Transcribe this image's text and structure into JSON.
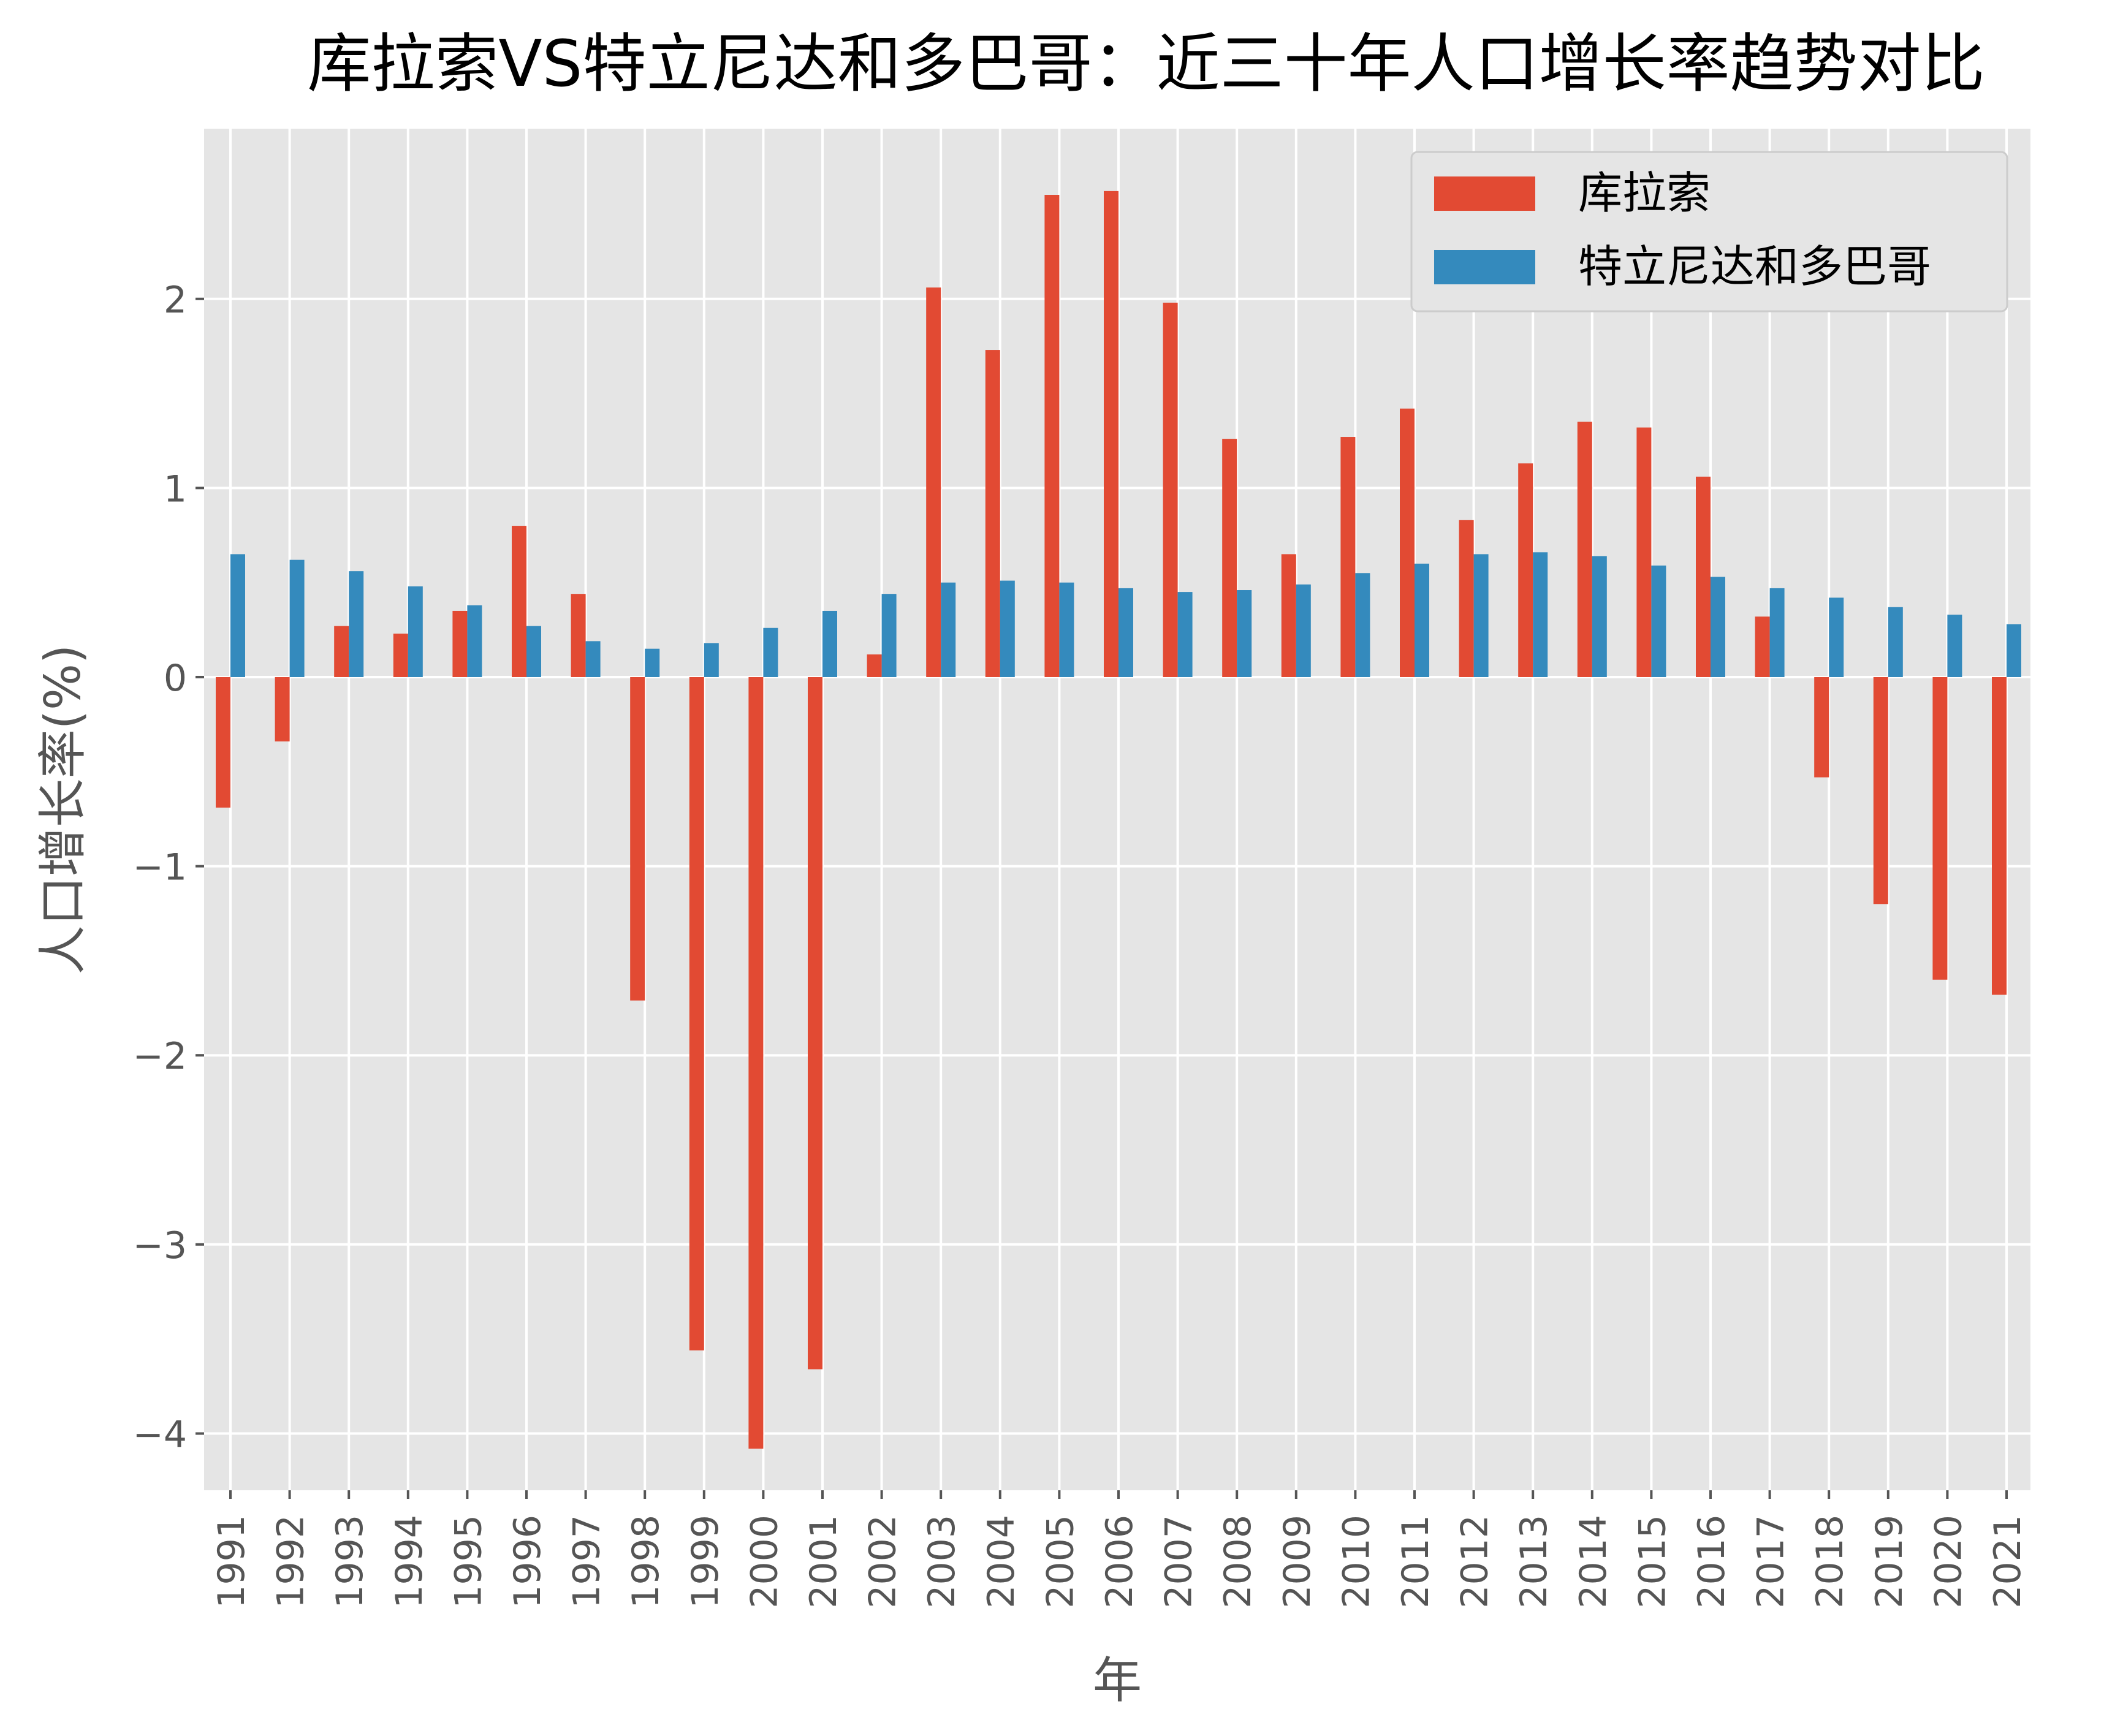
{
  "chart_data": {
    "type": "bar",
    "title": "库拉索VS特立尼达和多巴哥：近三十年人口增长率趋势对比",
    "xlabel": "年",
    "ylabel": "人口增长率(%)",
    "ylim": [
      -4.3,
      2.9
    ],
    "yticks": [
      -4,
      -3,
      -2,
      -1,
      0,
      1,
      2
    ],
    "grid": true,
    "legend_position": "top-right",
    "categories": [
      "1991",
      "1992",
      "1993",
      "1994",
      "1995",
      "1996",
      "1997",
      "1998",
      "1999",
      "2000",
      "2001",
      "2002",
      "2003",
      "2004",
      "2005",
      "2006",
      "2007",
      "2008",
      "2009",
      "2010",
      "2011",
      "2012",
      "2013",
      "2014",
      "2015",
      "2016",
      "2017",
      "2018",
      "2019",
      "2020",
      "2021"
    ],
    "series": [
      {
        "name": "库拉索",
        "color": "#E24A33",
        "values": [
          -0.69,
          -0.34,
          0.27,
          0.23,
          0.35,
          0.8,
          0.44,
          -1.71,
          -3.56,
          -4.08,
          -3.66,
          0.12,
          2.06,
          1.73,
          2.55,
          2.57,
          1.98,
          1.26,
          0.65,
          1.27,
          1.42,
          0.83,
          1.13,
          1.35,
          1.32,
          1.06,
          0.32,
          -0.53,
          -1.2,
          -1.6,
          -1.68
        ]
      },
      {
        "name": "特立尼达和多巴哥",
        "color": "#348ABD",
        "values": [
          0.65,
          0.62,
          0.56,
          0.48,
          0.38,
          0.27,
          0.19,
          0.15,
          0.18,
          0.26,
          0.35,
          0.44,
          0.5,
          0.51,
          0.5,
          0.47,
          0.45,
          0.46,
          0.49,
          0.55,
          0.6,
          0.65,
          0.66,
          0.64,
          0.59,
          0.53,
          0.47,
          0.42,
          0.37,
          0.33,
          0.28
        ]
      }
    ]
  }
}
